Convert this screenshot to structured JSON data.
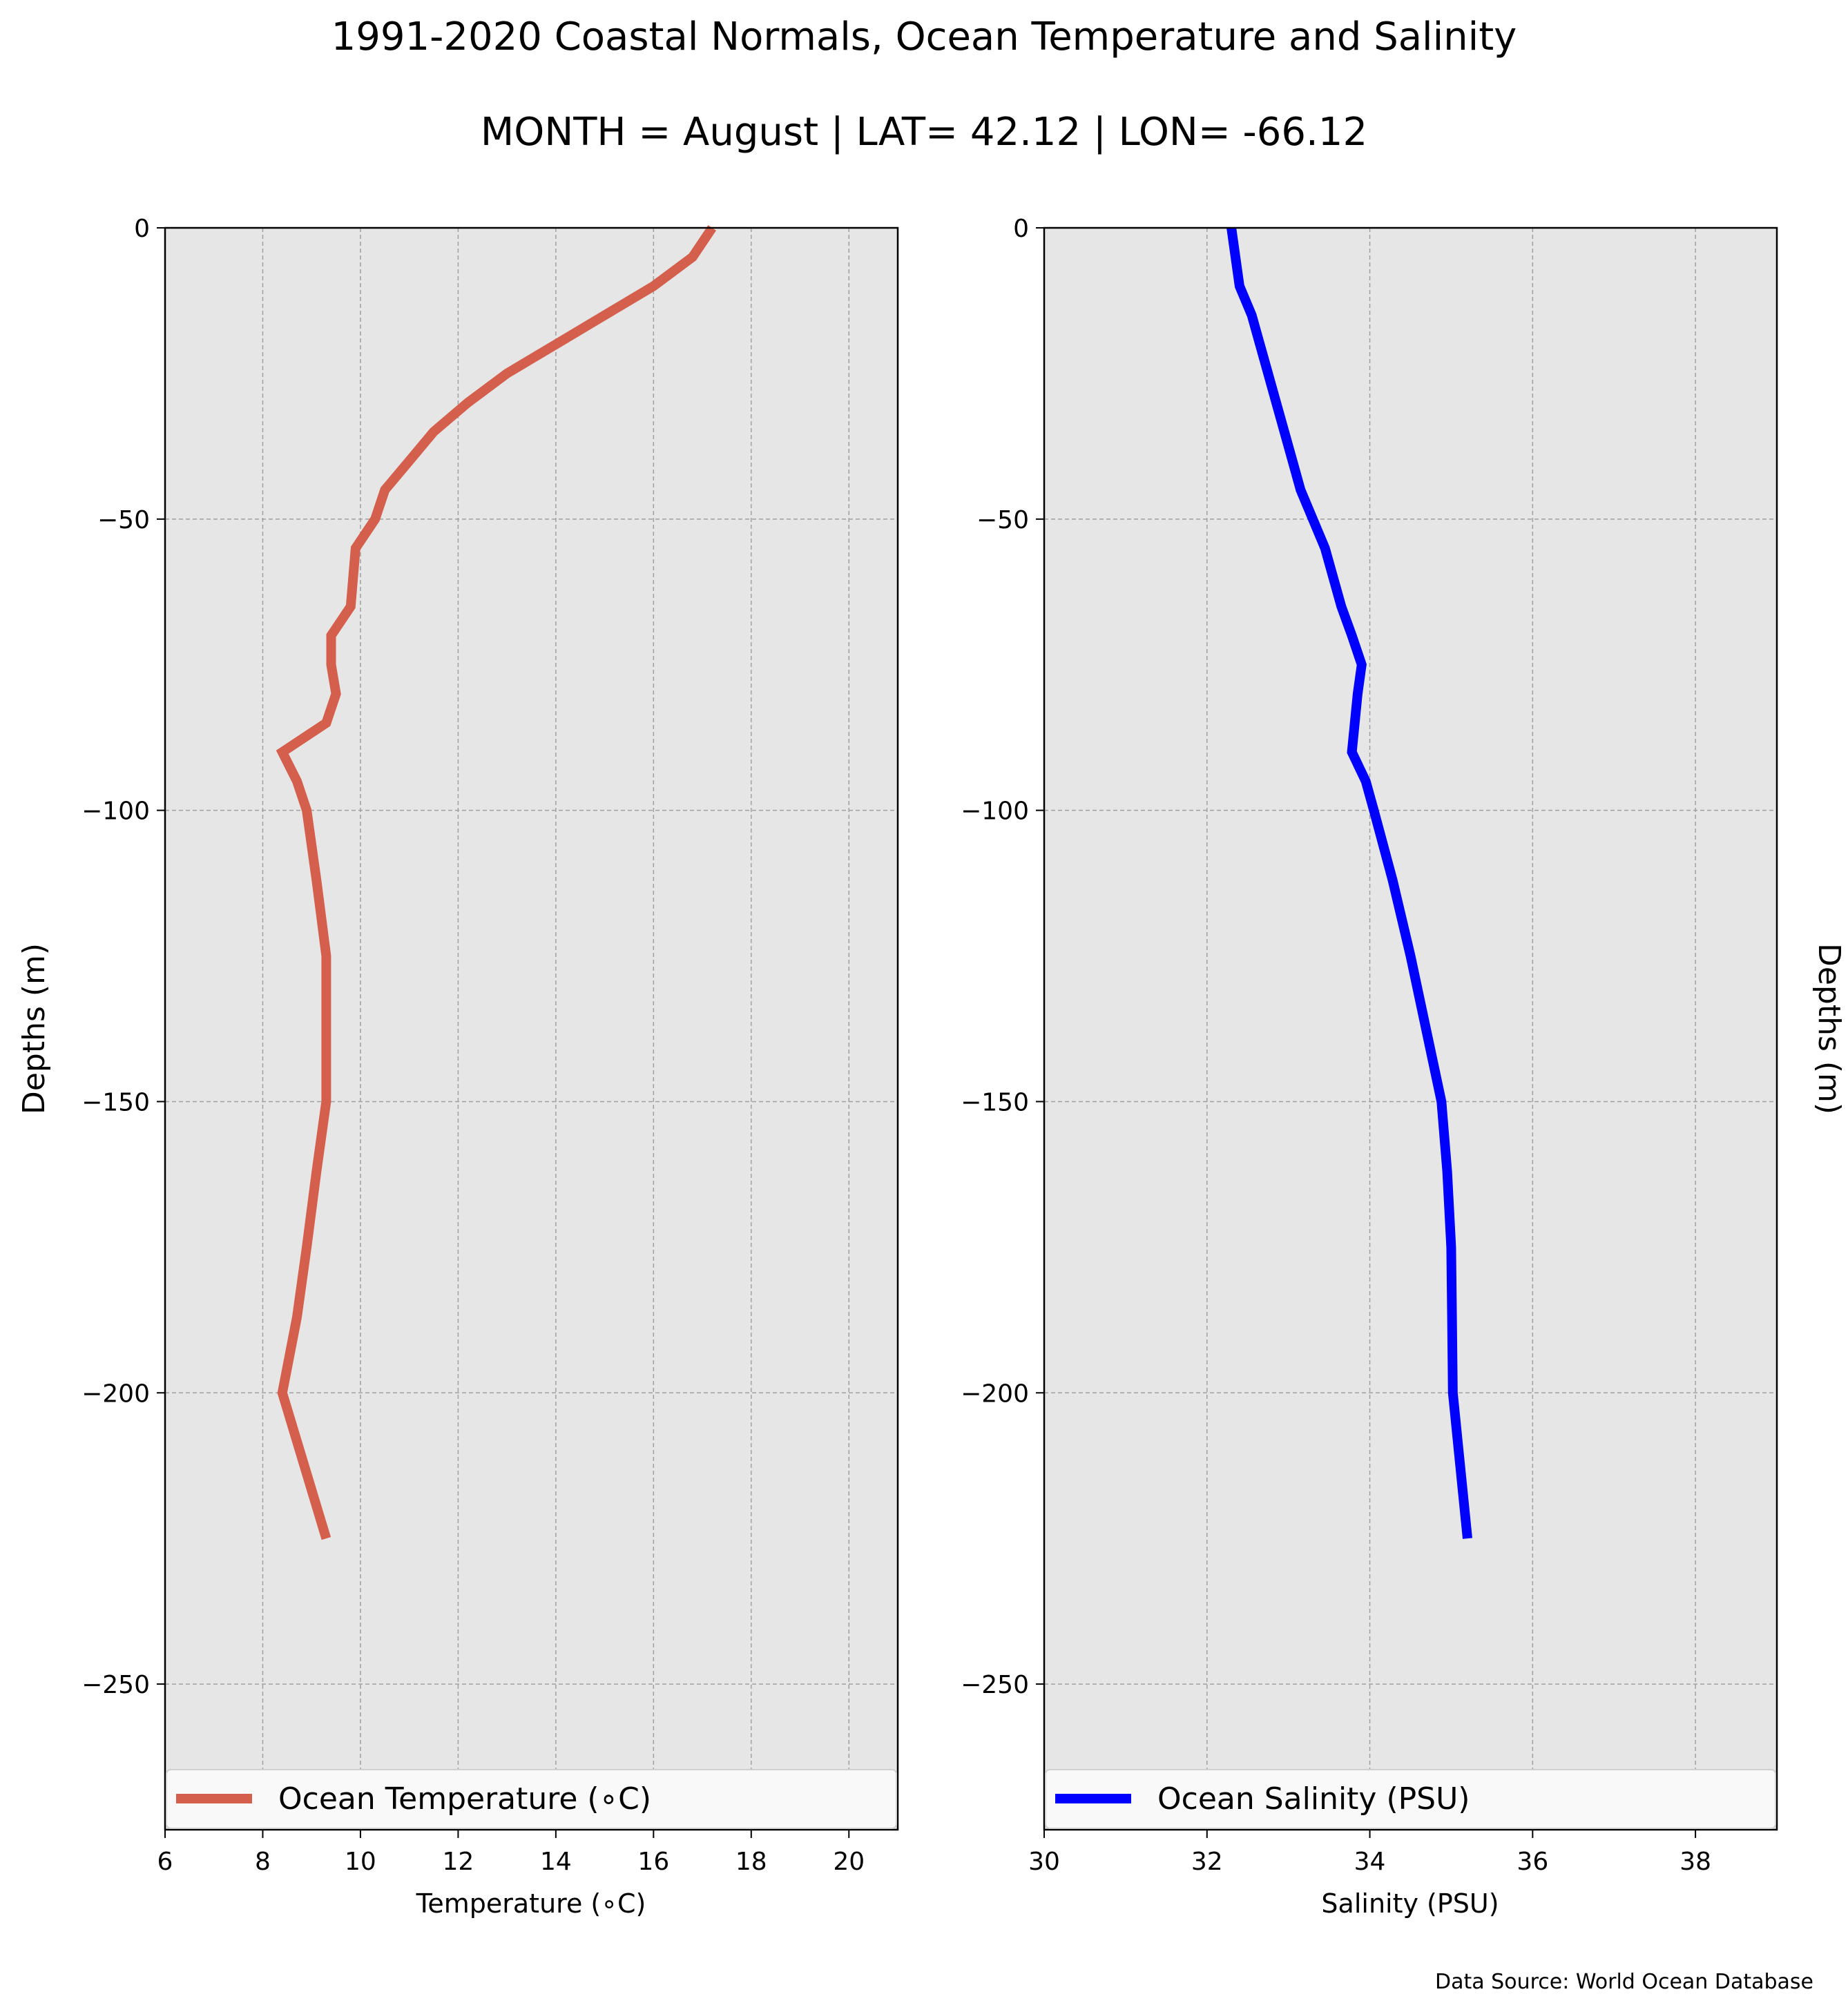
{
  "figure": {
    "title": "1991-2020 Coastal Normals, Ocean Temperature and Salinity",
    "subtitle": "MONTH = August | LAT= 42.12 | LON= -66.12",
    "source": "Data Source: World Ocean Database"
  },
  "chart_data": [
    {
      "type": "line",
      "xlabel": "Temperature (∘C)",
      "ylabel": "Depths (m)",
      "xlim": [
        6,
        21
      ],
      "ylim": [
        -275,
        0
      ],
      "xticks": [
        6,
        8,
        10,
        12,
        14,
        16,
        18,
        20
      ],
      "yticks": [
        0,
        -50,
        -100,
        -150,
        -200,
        -250
      ],
      "grid": true,
      "legend": "lower center",
      "background": "#e6e6e6",
      "series": [
        {
          "name": "Ocean Temperature (∘C)",
          "color": "#d45f4d",
          "x": [
            17.2,
            16.8,
            16.0,
            15.0,
            14.0,
            13.0,
            12.2,
            11.5,
            11.0,
            10.5,
            10.3,
            9.9,
            9.8,
            9.4,
            9.4,
            9.5,
            9.3,
            8.4,
            8.7,
            8.9,
            9.1,
            9.3,
            9.3,
            9.1,
            8.9,
            8.7,
            8.4,
            9.3
          ],
          "y": [
            0,
            -5,
            -10,
            -15,
            -20,
            -25,
            -30,
            -35,
            -40,
            -45,
            -50,
            -55,
            -65,
            -70,
            -75,
            -80,
            -85,
            -90,
            -95,
            -100,
            -112,
            -125,
            -150,
            -162,
            -175,
            -187,
            -200,
            -225
          ]
        }
      ]
    },
    {
      "type": "line",
      "xlabel": "Salinity (PSU)",
      "ylabel": "Depths (m)",
      "xlim": [
        30,
        39
      ],
      "ylim": [
        -275,
        0
      ],
      "xticks": [
        30,
        32,
        34,
        36,
        38
      ],
      "yticks": [
        0,
        -50,
        -100,
        -150,
        -200,
        -250
      ],
      "grid": true,
      "legend": "lower center",
      "background": "#e6e6e6",
      "series": [
        {
          "name": "Ocean Salinity (PSU)",
          "color": "#0000ff",
          "x": [
            32.3,
            32.35,
            32.4,
            32.55,
            32.65,
            32.75,
            32.85,
            32.95,
            33.05,
            33.15,
            33.3,
            33.45,
            33.55,
            33.65,
            33.78,
            33.9,
            33.85,
            33.78,
            33.95,
            34.05,
            34.28,
            34.5,
            34.88,
            34.95,
            35.0,
            35.01,
            35.02,
            35.2
          ],
          "y": [
            0,
            -5,
            -10,
            -15,
            -20,
            -25,
            -30,
            -35,
            -40,
            -45,
            -50,
            -55,
            -60,
            -65,
            -70,
            -75,
            -80,
            -90,
            -95,
            -100,
            -112,
            -125,
            -150,
            -162,
            -175,
            -187,
            -200,
            -225
          ]
        }
      ]
    }
  ]
}
